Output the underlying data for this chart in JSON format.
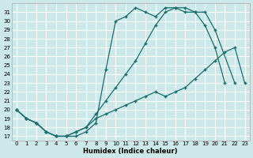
{
  "xlabel": "Humidex (Indice chaleur)",
  "xlim": [
    -0.5,
    23.5
  ],
  "ylim": [
    16.5,
    32.0
  ],
  "xticks": [
    0,
    1,
    2,
    3,
    4,
    5,
    6,
    7,
    8,
    9,
    10,
    11,
    12,
    13,
    14,
    15,
    16,
    17,
    18,
    19,
    20,
    21,
    22,
    23
  ],
  "yticks": [
    17,
    18,
    19,
    20,
    21,
    22,
    23,
    24,
    25,
    26,
    27,
    28,
    29,
    30,
    31
  ],
  "bg_color": "#cde8e8",
  "grid_color": "#ffffff",
  "line_color": "#1a6e6a",
  "line1_x": [
    0,
    1,
    2,
    3,
    4,
    5,
    6,
    7,
    8,
    9,
    10,
    11,
    12,
    13,
    14,
    15,
    16,
    17,
    18,
    19,
    20,
    21
  ],
  "line1_y": [
    20.0,
    19.0,
    18.5,
    17.5,
    17.0,
    17.0,
    17.0,
    17.5,
    18.5,
    24.5,
    30.0,
    30.5,
    31.5,
    31.0,
    30.5,
    31.5,
    31.5,
    31.0,
    31.0,
    29.5,
    27.0,
    23.0
  ],
  "line2_x": [
    0,
    1,
    2,
    3,
    4,
    5,
    6,
    7,
    8,
    9,
    10,
    11,
    12,
    13,
    14,
    15,
    16,
    17,
    18,
    19,
    20,
    22
  ],
  "line2_y": [
    20.0,
    19.0,
    18.5,
    17.5,
    17.0,
    17.0,
    17.5,
    18.0,
    19.5,
    21.0,
    22.5,
    24.0,
    25.5,
    27.5,
    29.5,
    31.0,
    31.5,
    31.5,
    31.0,
    31.0,
    29.0,
    23.0
  ],
  "line3_x": [
    0,
    1,
    2,
    3,
    4,
    5,
    6,
    7,
    8,
    9,
    10,
    11,
    12,
    13,
    14,
    15,
    16,
    17,
    18,
    19,
    20,
    21,
    22,
    23
  ],
  "line3_y": [
    20.0,
    19.0,
    18.5,
    17.5,
    17.0,
    17.0,
    17.5,
    18.0,
    19.0,
    19.5,
    20.0,
    20.5,
    21.0,
    21.5,
    22.0,
    21.5,
    22.0,
    22.5,
    23.5,
    24.5,
    25.5,
    26.5,
    27.0,
    23.0
  ]
}
